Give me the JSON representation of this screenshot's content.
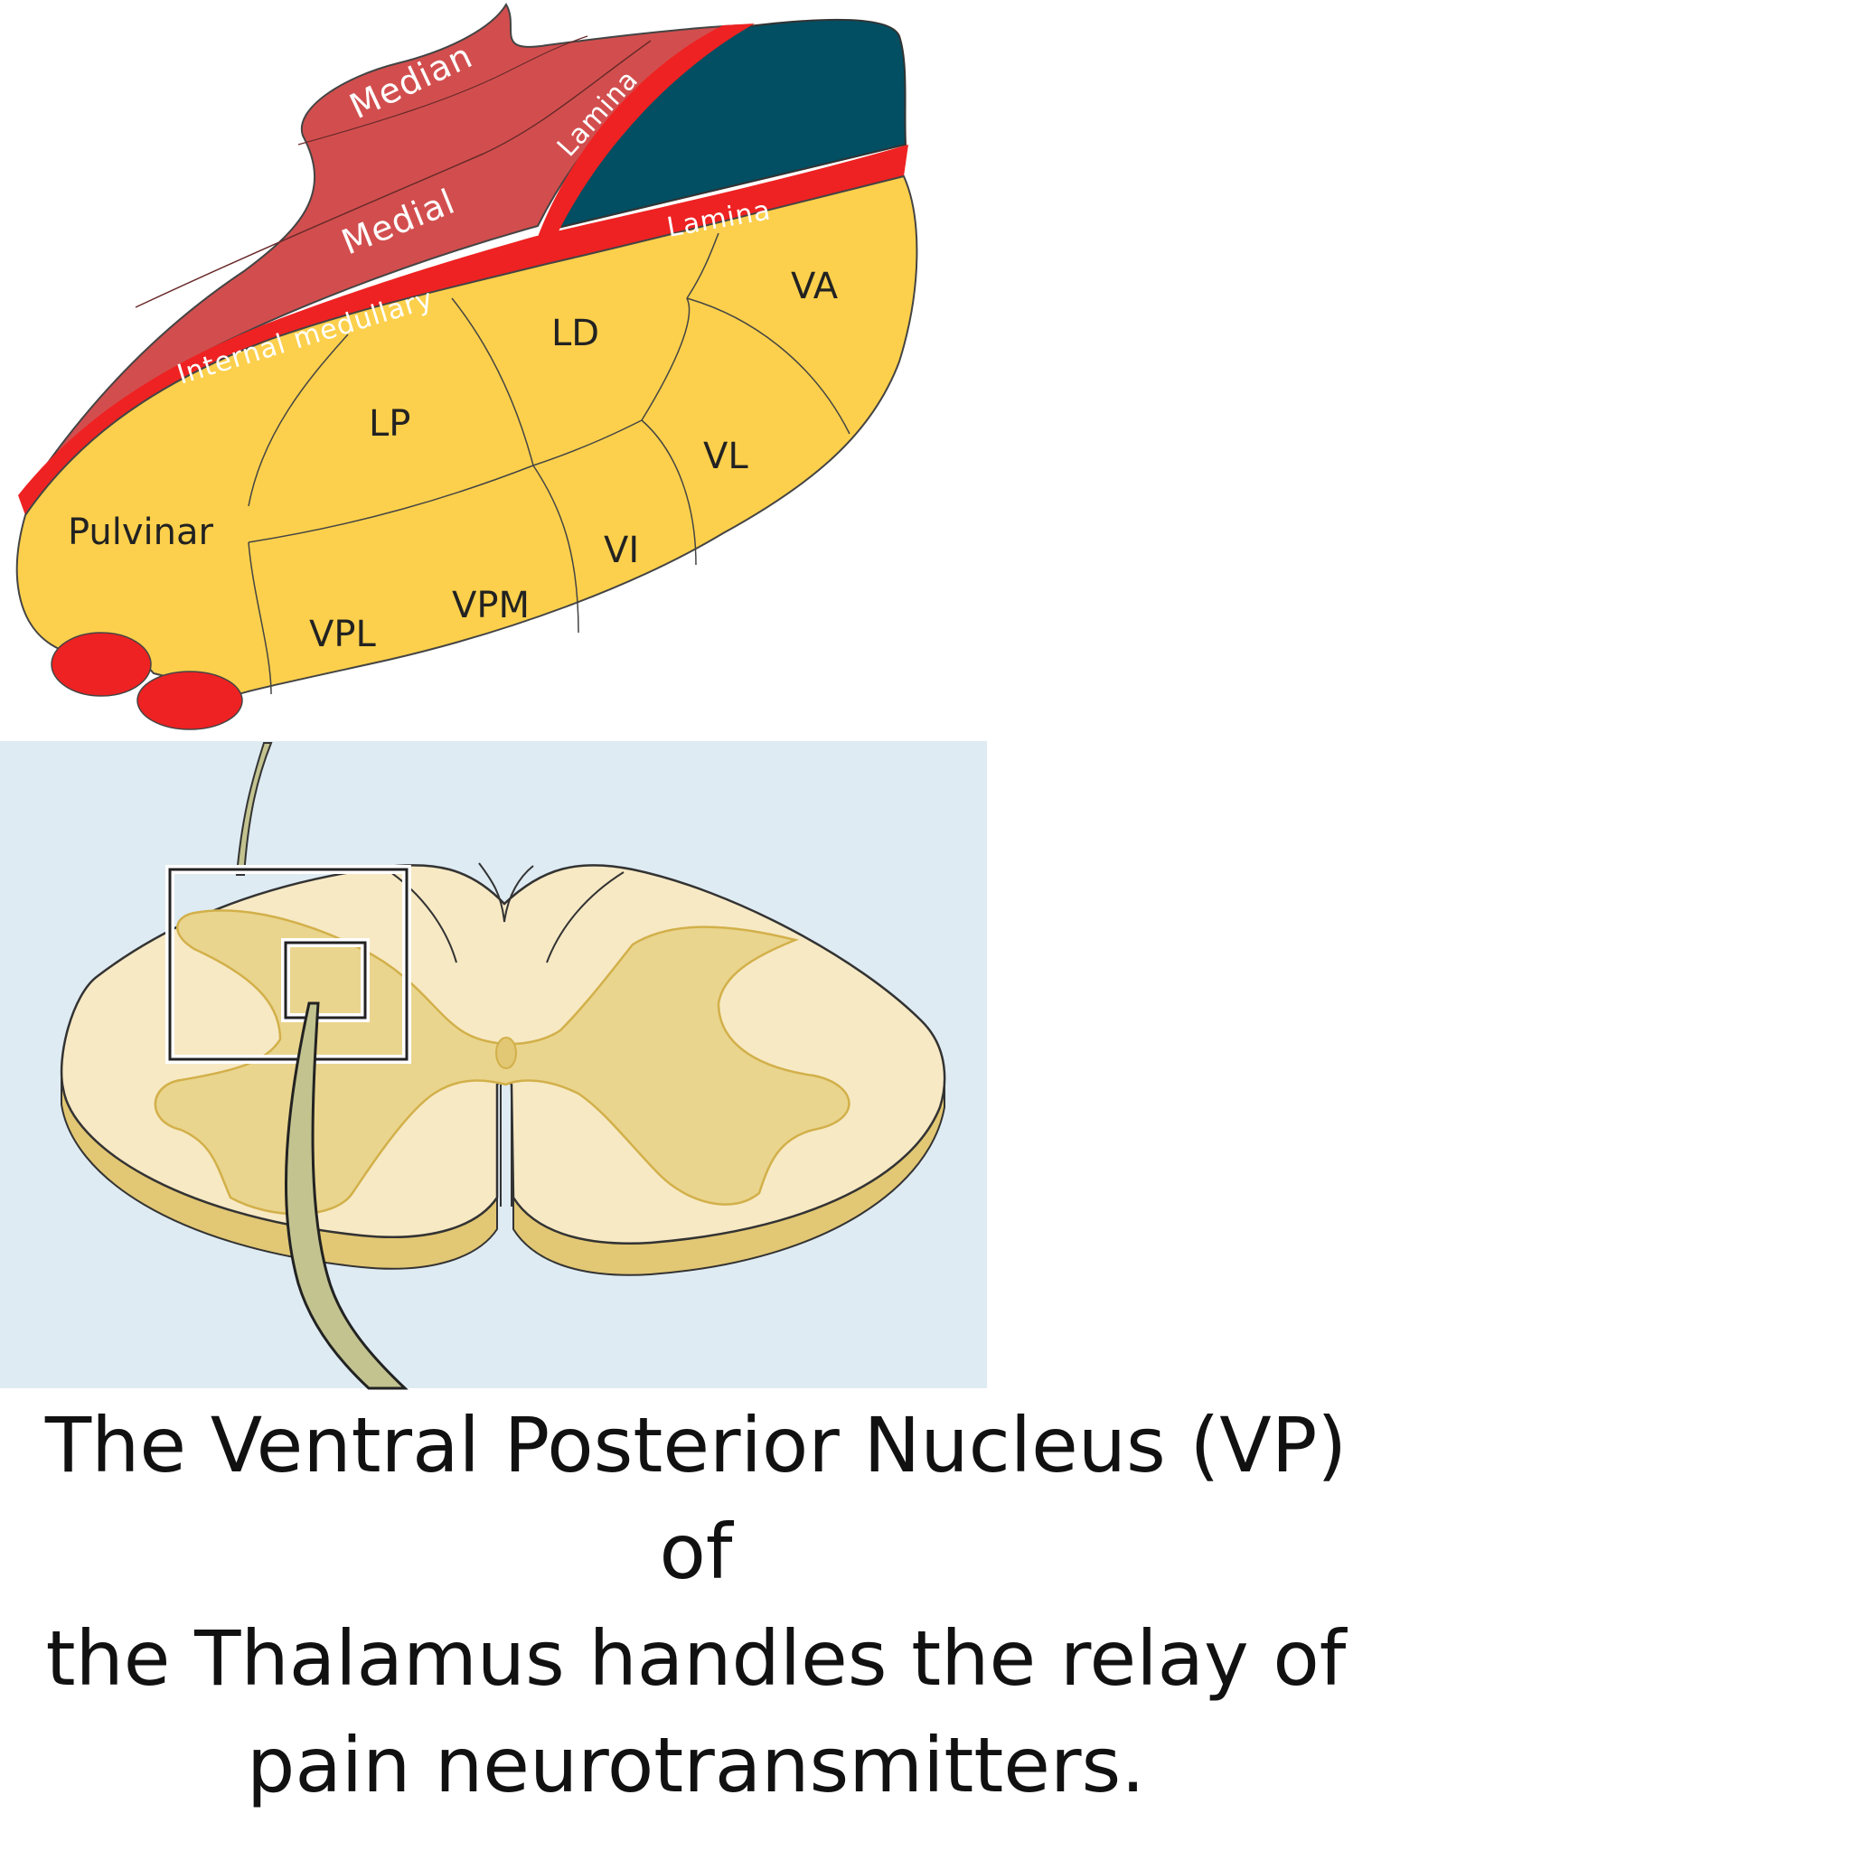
{
  "thalamus": {
    "labels": {
      "median": "Median",
      "medial": "Medial",
      "lamina_upper": "Lamina",
      "lamina_lower": "Lamina",
      "internal_medullary": "Internal medullary",
      "ld": "LD",
      "va": "VA",
      "lp": "LP",
      "vl": "VL",
      "pulvinar": "Pulvinar",
      "vi": "VI",
      "vpm": "VPM",
      "vpl": "VPL"
    },
    "colors": {
      "median_medial": "#d24e4e",
      "lamina": "#ee2222",
      "anterior": "#024e62",
      "lateral": "#fcd04c"
    }
  },
  "spinal_cord": {
    "colors": {
      "background": "#deebf3",
      "white_matter": "#f7e9c4",
      "grey_matter": "#ead58e",
      "nerve": "#c2c38f"
    }
  },
  "caption": {
    "line1": "The Ventral Posterior Nucleus (VP) of",
    "line2": "the Thalamus handles the relay of",
    "line3": "pain neurotransmitters."
  }
}
